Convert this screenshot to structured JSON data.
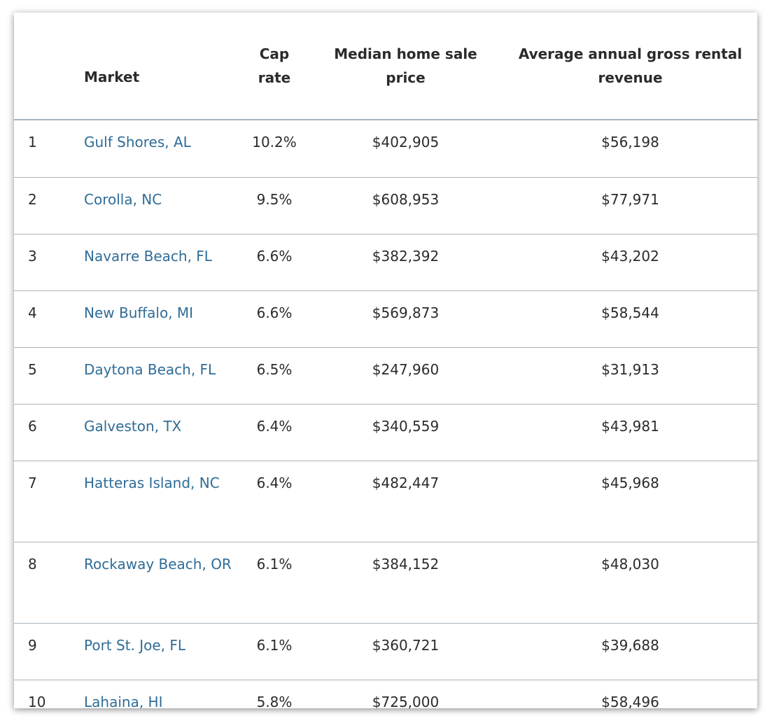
{
  "table": {
    "headers": {
      "rank": "",
      "market": "Market",
      "cap_rate": "Cap rate",
      "median_price": "Median home sale price",
      "revenue": "Average annual gross rental revenue"
    },
    "rows": [
      {
        "rank": "1",
        "market": "Gulf Shores, AL",
        "cap_rate": "10.2%",
        "median_price": "$402,905",
        "revenue": "$56,198"
      },
      {
        "rank": "2",
        "market": "Corolla, NC",
        "cap_rate": "9.5%",
        "median_price": "$608,953",
        "revenue": "$77,971"
      },
      {
        "rank": "3",
        "market": "Navarre Beach, FL",
        "cap_rate": "6.6%",
        "median_price": "$382,392",
        "revenue": "$43,202"
      },
      {
        "rank": "4",
        "market": "New Buffalo, MI",
        "cap_rate": "6.6%",
        "median_price": "$569,873",
        "revenue": "$58,544"
      },
      {
        "rank": "5",
        "market": "Daytona Beach, FL",
        "cap_rate": "6.5%",
        "median_price": "$247,960",
        "revenue": "$31,913"
      },
      {
        "rank": "6",
        "market": "Galveston, TX",
        "cap_rate": "6.4%",
        "median_price": "$340,559",
        "revenue": "$43,981"
      },
      {
        "rank": "7",
        "market": "Hatteras Island, NC",
        "cap_rate": "6.4%",
        "median_price": "$482,447",
        "revenue": "$45,968"
      },
      {
        "rank": "8",
        "market": "Rockaway Beach, OR",
        "cap_rate": "6.1%",
        "median_price": "$384,152",
        "revenue": "$48,030"
      },
      {
        "rank": "9",
        "market": "Port St. Joe, FL",
        "cap_rate": "6.1%",
        "median_price": "$360,721",
        "revenue": "$39,688"
      },
      {
        "rank": "10",
        "market": "Lahaina, HI",
        "cap_rate": "5.8%",
        "median_price": "$725,000",
        "revenue": "$58,496"
      }
    ]
  },
  "colors": {
    "market_link": "#2f6c97",
    "text": "#2b2b2b",
    "divider": "#a9b4bd"
  }
}
